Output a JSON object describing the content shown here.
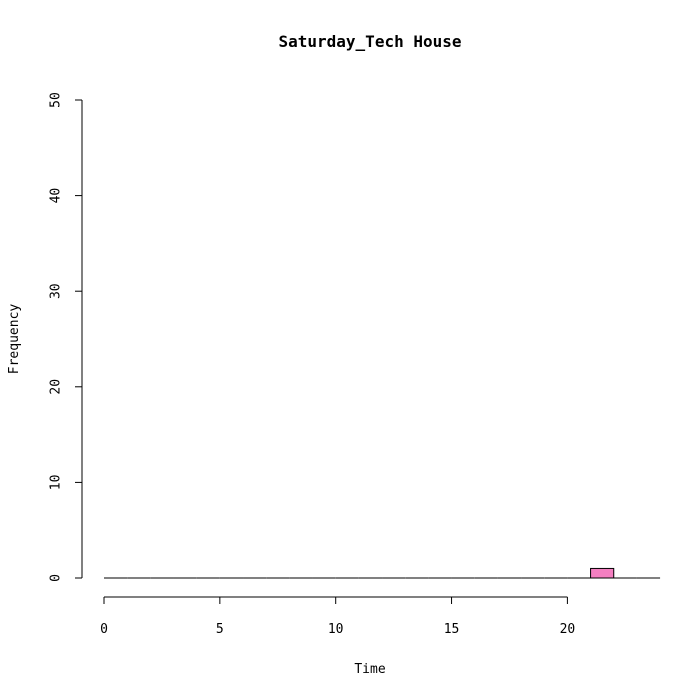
{
  "chart_data": {
    "type": "bar",
    "title": "Saturday_Tech House",
    "xlabel": "Time",
    "ylabel": "Frequency",
    "x_range": [
      0,
      24
    ],
    "ylim": [
      0,
      50
    ],
    "x_ticks": [
      0,
      5,
      10,
      15,
      20
    ],
    "y_ticks": [
      0,
      10,
      20,
      30,
      40,
      50
    ],
    "bin_width": 1,
    "bins": [
      {
        "start": 0,
        "end": 1,
        "count": 0
      },
      {
        "start": 1,
        "end": 2,
        "count": 0
      },
      {
        "start": 2,
        "end": 3,
        "count": 0
      },
      {
        "start": 3,
        "end": 4,
        "count": 0
      },
      {
        "start": 4,
        "end": 5,
        "count": 0
      },
      {
        "start": 5,
        "end": 6,
        "count": 0
      },
      {
        "start": 6,
        "end": 7,
        "count": 0
      },
      {
        "start": 7,
        "end": 8,
        "count": 0
      },
      {
        "start": 8,
        "end": 9,
        "count": 0
      },
      {
        "start": 9,
        "end": 10,
        "count": 0
      },
      {
        "start": 10,
        "end": 11,
        "count": 0
      },
      {
        "start": 11,
        "end": 12,
        "count": 0
      },
      {
        "start": 12,
        "end": 13,
        "count": 0
      },
      {
        "start": 13,
        "end": 14,
        "count": 0
      },
      {
        "start": 14,
        "end": 15,
        "count": 0
      },
      {
        "start": 15,
        "end": 16,
        "count": 0
      },
      {
        "start": 16,
        "end": 17,
        "count": 0
      },
      {
        "start": 17,
        "end": 18,
        "count": 0
      },
      {
        "start": 18,
        "end": 19,
        "count": 0
      },
      {
        "start": 19,
        "end": 20,
        "count": 0
      },
      {
        "start": 20,
        "end": 21,
        "count": 0
      },
      {
        "start": 21,
        "end": 22,
        "count": 1
      },
      {
        "start": 22,
        "end": 23,
        "count": 0
      },
      {
        "start": 23,
        "end": 24,
        "count": 0
      }
    ],
    "bar_color": "#f47fc1",
    "grid": false
  }
}
